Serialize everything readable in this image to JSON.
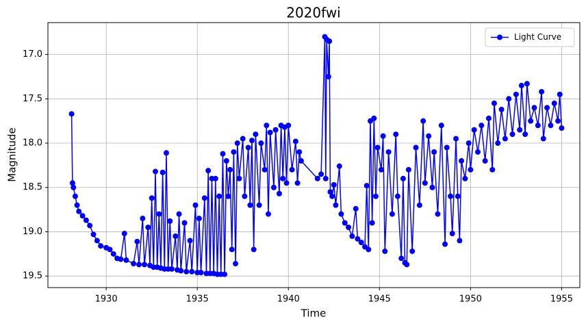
{
  "chart_data": {
    "type": "line",
    "title": "2020fwi",
    "x_label": "Time",
    "y_label": "Magnitude",
    "x": [
      1928.1,
      1928.15,
      1928.2,
      1928.3,
      1928.4,
      1928.5,
      1928.7,
      1928.9,
      1929.1,
      1929.3,
      1929.5,
      1929.7,
      1930.0,
      1930.2,
      1930.4,
      1930.6,
      1930.8,
      1931.0,
      1931.1,
      1931.5,
      1931.7,
      1931.8,
      1932.0,
      1932.1,
      1932.3,
      1932.4,
      1932.5,
      1932.6,
      1932.7,
      1932.8,
      1932.9,
      1933.0,
      1933.1,
      1933.2,
      1933.3,
      1933.4,
      1933.5,
      1933.6,
      1933.8,
      1933.9,
      1934.0,
      1934.1,
      1934.3,
      1934.4,
      1934.6,
      1934.7,
      1934.9,
      1935.0,
      1935.1,
      1935.2,
      1935.4,
      1935.5,
      1935.6,
      1935.7,
      1935.8,
      1935.9,
      1936.0,
      1936.1,
      1936.2,
      1936.3,
      1936.4,
      1936.5,
      1936.6,
      1936.7,
      1936.8,
      1936.9,
      1937.0,
      1937.1,
      1937.2,
      1937.3,
      1937.5,
      1937.6,
      1937.8,
      1937.9,
      1938.0,
      1938.1,
      1938.2,
      1938.4,
      1938.5,
      1938.7,
      1938.8,
      1938.9,
      1939.0,
      1939.2,
      1939.3,
      1939.5,
      1939.6,
      1939.7,
      1939.8,
      1939.9,
      1940.0,
      1940.2,
      1940.4,
      1940.5,
      1940.6,
      1940.7,
      1941.6,
      1941.8,
      1942.0,
      1942.05,
      1942.1,
      1942.2,
      1942.25,
      1942.3,
      1942.4,
      1942.5,
      1942.6,
      1942.8,
      1942.9,
      1943.1,
      1943.3,
      1943.5,
      1943.7,
      1943.8,
      1944.0,
      1944.2,
      1944.3,
      1944.4,
      1944.5,
      1944.6,
      1944.7,
      1944.8,
      1944.9,
      1945.1,
      1945.2,
      1945.3,
      1945.5,
      1945.7,
      1945.9,
      1946.0,
      1946.2,
      1946.3,
      1946.4,
      1946.5,
      1946.6,
      1946.8,
      1947.0,
      1947.2,
      1947.4,
      1947.5,
      1947.7,
      1947.9,
      1948.0,
      1948.2,
      1948.4,
      1948.6,
      1948.7,
      1948.9,
      1949.0,
      1949.2,
      1949.3,
      1949.4,
      1949.5,
      1949.7,
      1949.9,
      1950.0,
      1950.2,
      1950.4,
      1950.6,
      1950.8,
      1951.0,
      1951.2,
      1951.3,
      1951.5,
      1951.7,
      1951.9,
      1952.1,
      1952.3,
      1952.5,
      1952.7,
      1952.8,
      1953.0,
      1953.1,
      1953.3,
      1953.5,
      1953.7,
      1953.9,
      1954.0,
      1954.2,
      1954.4,
      1954.6,
      1954.8,
      1954.9,
      1955.0
    ],
    "series": [
      {
        "name": "Light Curve",
        "color": "#0000ff",
        "values": [
          17.67,
          18.45,
          18.5,
          18.6,
          18.7,
          18.77,
          18.82,
          18.87,
          18.93,
          19.03,
          19.1,
          19.16,
          19.18,
          19.2,
          19.25,
          19.3,
          19.31,
          19.02,
          19.32,
          19.36,
          19.11,
          19.37,
          18.85,
          19.37,
          18.95,
          19.38,
          18.62,
          19.4,
          18.32,
          19.4,
          18.8,
          19.41,
          18.33,
          19.42,
          18.11,
          19.42,
          18.88,
          19.42,
          19.05,
          19.43,
          18.8,
          19.44,
          18.9,
          19.45,
          19.1,
          19.45,
          18.7,
          19.46,
          18.85,
          19.46,
          18.62,
          19.47,
          18.31,
          19.47,
          18.4,
          19.47,
          18.4,
          19.48,
          18.6,
          19.48,
          18.12,
          19.48,
          18.2,
          18.6,
          18.3,
          19.2,
          18.1,
          19.36,
          18.0,
          18.4,
          17.95,
          18.6,
          18.05,
          18.7,
          17.97,
          19.2,
          17.9,
          18.7,
          18.0,
          18.3,
          17.8,
          18.8,
          17.88,
          18.5,
          17.85,
          18.57,
          17.8,
          18.4,
          17.82,
          18.45,
          17.8,
          18.3,
          17.98,
          18.45,
          18.1,
          18.2,
          18.4,
          18.35,
          16.8,
          18.4,
          16.83,
          17.25,
          16.85,
          18.55,
          18.6,
          18.47,
          18.7,
          18.26,
          18.8,
          18.9,
          18.95,
          19.05,
          18.74,
          19.08,
          19.12,
          19.17,
          18.48,
          19.2,
          17.75,
          18.9,
          17.72,
          18.6,
          18.05,
          18.3,
          17.92,
          19.22,
          18.1,
          18.8,
          17.9,
          18.6,
          19.3,
          18.4,
          19.35,
          19.37,
          18.3,
          19.22,
          18.05,
          18.7,
          17.75,
          18.45,
          17.92,
          18.5,
          18.1,
          18.8,
          17.8,
          19.14,
          18.05,
          18.6,
          19.02,
          17.95,
          18.6,
          19.1,
          18.2,
          18.4,
          18.0,
          18.3,
          17.85,
          18.1,
          17.8,
          18.2,
          17.72,
          18.3,
          17.55,
          18.0,
          17.62,
          17.95,
          17.5,
          17.9,
          17.45,
          17.85,
          17.35,
          17.9,
          17.33,
          17.75,
          17.6,
          17.8,
          17.42,
          17.95,
          17.6,
          17.8,
          17.55,
          17.75,
          17.45,
          17.83
        ]
      }
    ],
    "xlim": [
      1926.8,
      1956.0
    ],
    "xticks": [
      1930,
      1935,
      1940,
      1945,
      1950,
      1955
    ],
    "ylim": [
      19.63,
      16.64
    ],
    "yticks": [
      {
        "value": 17.0,
        "label": "17.0"
      },
      {
        "value": 17.5,
        "label": "17.5"
      },
      {
        "value": 18.0,
        "label": "18.0"
      },
      {
        "value": 18.5,
        "label": "18.5"
      },
      {
        "value": 19.0,
        "label": "19.0"
      },
      {
        "value": 19.5,
        "label": "19.5"
      }
    ],
    "grid": true,
    "legend": "upper right"
  }
}
